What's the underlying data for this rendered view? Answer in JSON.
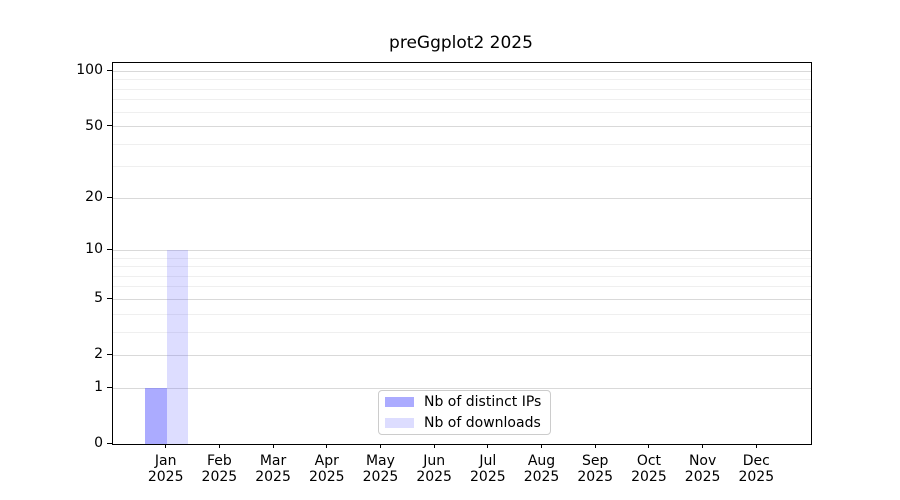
{
  "title": "preGgplot2 2025",
  "chart_data": {
    "type": "bar",
    "title": "preGgplot2 2025",
    "x_categories": [
      "Jan",
      "Feb",
      "Mar",
      "Apr",
      "May",
      "Jun",
      "Jul",
      "Aug",
      "Sep",
      "Oct",
      "Nov",
      "Dec"
    ],
    "x_year": "2025",
    "series": [
      {
        "name": "Nb of distinct IPs",
        "color": "#6666FF8C",
        "values": [
          1,
          0,
          0,
          0,
          0,
          0,
          0,
          0,
          0,
          0,
          0,
          0
        ]
      },
      {
        "name": "Nb of downloads",
        "color": "#6666FF38",
        "values": [
          10,
          0,
          0,
          0,
          0,
          0,
          0,
          0,
          0,
          0,
          0,
          0
        ]
      }
    ],
    "y_axis": {
      "scale": "log1p",
      "major_ticks": [
        0,
        1,
        2,
        5,
        10,
        20,
        50,
        100
      ],
      "minor_ticks": [
        3,
        4,
        6,
        7,
        8,
        9,
        30,
        40,
        60,
        70,
        80,
        90
      ],
      "max": 111
    },
    "legend": {
      "position": "bottom-center",
      "entries": [
        "Nb of distinct IPs",
        "Nb of downloads"
      ]
    },
    "grid": "horizontal",
    "colors": {
      "major_grid": "#d9d9d9",
      "minor_grid": "#efefef",
      "spine": "#000000",
      "background": "#ffffff"
    }
  }
}
